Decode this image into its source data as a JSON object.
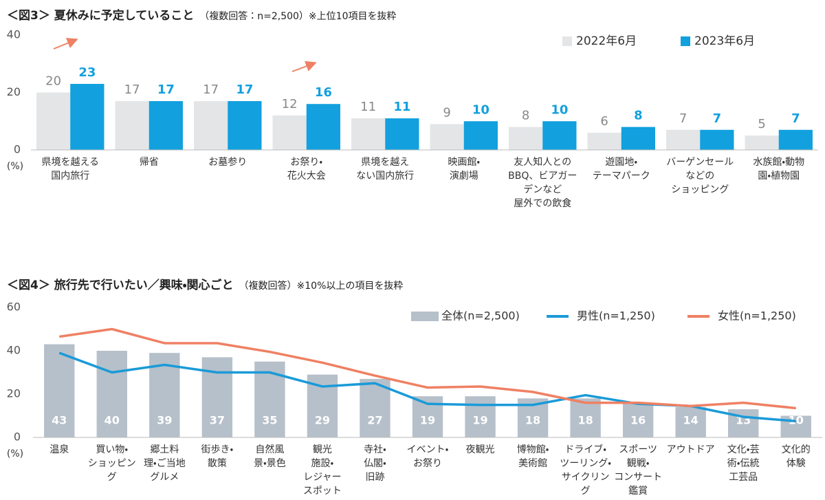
{
  "chart_data": [
    {
      "type": "grouped-bar",
      "title": "＜図3＞ 夏休みに予定していること",
      "subtitle": "（複数回答：n=2,500）※上位10項目を抜粋",
      "ylabel": "(%)",
      "categories": [
        "県境を越える\n国内旅行",
        "帰省",
        "お墓参り",
        "お祭り・\n花火大会",
        "県境を越え\nない国内旅行",
        "映画館・\n演劇場",
        "友人知人との\nBBQ、ビアガー\nデンなど\n屋外での飲食",
        "遊園地・\nテーマパーク",
        "バーゲンセール\nなどの\nショッピング",
        "水族館・動物\n園・植物園"
      ],
      "series": [
        {
          "name": "2022年6月",
          "color": "#e3e5e7",
          "values": [
            20,
            17,
            17,
            12,
            11,
            9,
            8,
            6,
            7,
            5
          ]
        },
        {
          "name": "2023年6月",
          "color": "#12a0de",
          "values": [
            23,
            17,
            17,
            16,
            11,
            10,
            10,
            8,
            7,
            7
          ]
        }
      ],
      "ylim": [
        0,
        40
      ],
      "yticks": [
        0,
        20,
        40
      ]
    },
    {
      "type": "combo",
      "title": "＜図4＞ 旅行先で行いたい／興味・関心ごと",
      "subtitle": "（複数回答）※10%以上の項目を抜粋",
      "ylabel": "(%)",
      "categories": [
        "温泉",
        "買い物・\nショッピング",
        "郷土料\n理・ご当地\nグルメ",
        "街歩き・\n散策",
        "自然風\n景・景色",
        "観光\n施設・\nレジャー\nスポット",
        "寺社・\n仏閣・\n旧跡",
        "イベント・\nお祭り",
        "夜観光",
        "博物館・\n美術館",
        "ドライブ・\nツーリング・\nサイクリング",
        "スポーツ\n観戦・\nコンサート\n鑑賞",
        "アウトドア",
        "文化・芸\n術・伝統\n工芸品",
        "文化的\n体験"
      ],
      "series": [
        {
          "name": "全体(n=2,500)",
          "type": "bar",
          "color": "#b6c0ca",
          "values": [
            43,
            40,
            39,
            37,
            35,
            29,
            27,
            19,
            19,
            18,
            18,
            16,
            14,
            13,
            10
          ]
        },
        {
          "name": "男性(n=1,250)",
          "type": "line",
          "color": "#1a9ad8",
          "values": [
            39,
            30,
            33.5,
            30,
            30,
            23.5,
            25,
            15.5,
            15,
            15,
            19.5,
            15.5,
            14.5,
            9.5,
            7.5
          ]
        },
        {
          "name": "女性(n=1,250)",
          "type": "line",
          "color": "#ef8063",
          "values": [
            46.5,
            50,
            43.5,
            43.5,
            39.5,
            34.5,
            28.5,
            23,
            23.5,
            21,
            16,
            16,
            14.5,
            16,
            13.5
          ]
        }
      ],
      "ylim": [
        0,
        60
      ],
      "yticks": [
        0,
        20,
        40,
        60
      ]
    }
  ]
}
